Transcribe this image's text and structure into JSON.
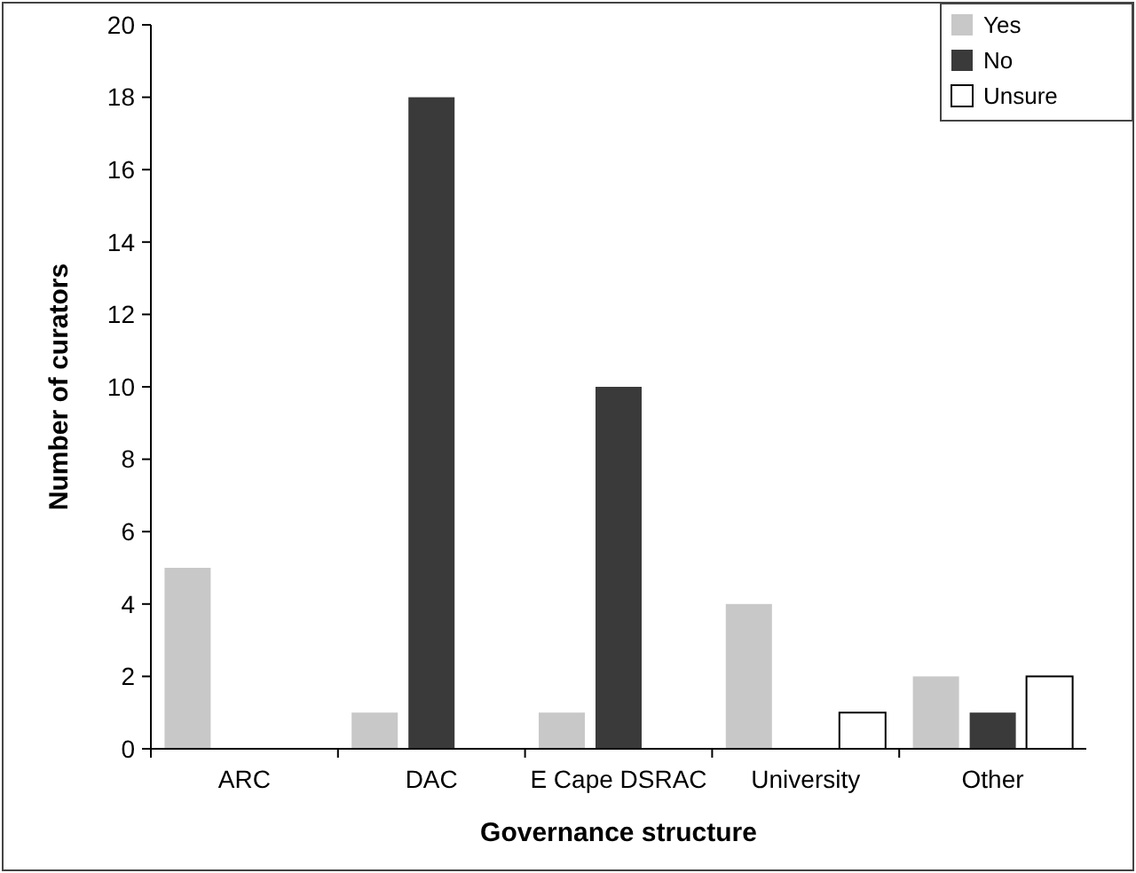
{
  "chart_data": {
    "type": "bar",
    "xlabel": "Governance structure",
    "ylabel": "Number of curators",
    "categories": [
      "ARC",
      "DAC",
      "E Cape DSRAC",
      "University",
      "Other"
    ],
    "series": [
      {
        "name": "Yes",
        "color": "#c8c8c8",
        "values": [
          5,
          1,
          1,
          4,
          2
        ]
      },
      {
        "name": "No",
        "color": "#3a3a3a",
        "values": [
          0,
          18,
          10,
          0,
          1
        ]
      },
      {
        "name": "Unsure",
        "color": "#ffffff",
        "values": [
          0,
          0,
          0,
          1,
          2
        ]
      }
    ],
    "ylim": [
      0,
      20
    ],
    "yticks": [
      0,
      2,
      4,
      6,
      8,
      10,
      12,
      14,
      16,
      18,
      20
    ],
    "grid": false,
    "legend": "top right"
  }
}
